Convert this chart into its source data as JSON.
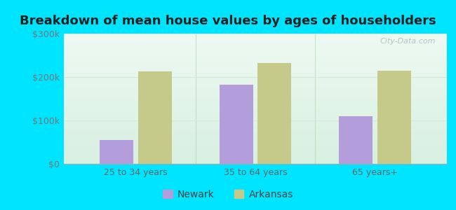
{
  "title": "Breakdown of mean house values by ages of householders",
  "categories": [
    "25 to 34 years",
    "35 to 64 years",
    "65 years+"
  ],
  "newark_values": [
    55000,
    182000,
    110000
  ],
  "arkansas_values": [
    213000,
    232000,
    215000
  ],
  "newark_color": "#b39ddb",
  "arkansas_color": "#c5c98a",
  "ylim": [
    0,
    300000
  ],
  "yticks": [
    0,
    100000,
    200000,
    300000
  ],
  "ytick_labels": [
    "$0",
    "$100k",
    "$200k",
    "$300k"
  ],
  "bar_width": 0.28,
  "legend_labels": [
    "Newark",
    "Arkansas"
  ],
  "title_fontsize": 13,
  "tick_fontsize": 9,
  "legend_fontsize": 10,
  "outer_bg": "#00e5ff",
  "plot_bg_color": "#e8f8ee",
  "grid_color": "#d4ead4",
  "separator_color": "#aaccaa",
  "watermark_text": "City-Data.com",
  "watermark_color": "#aabbbb"
}
